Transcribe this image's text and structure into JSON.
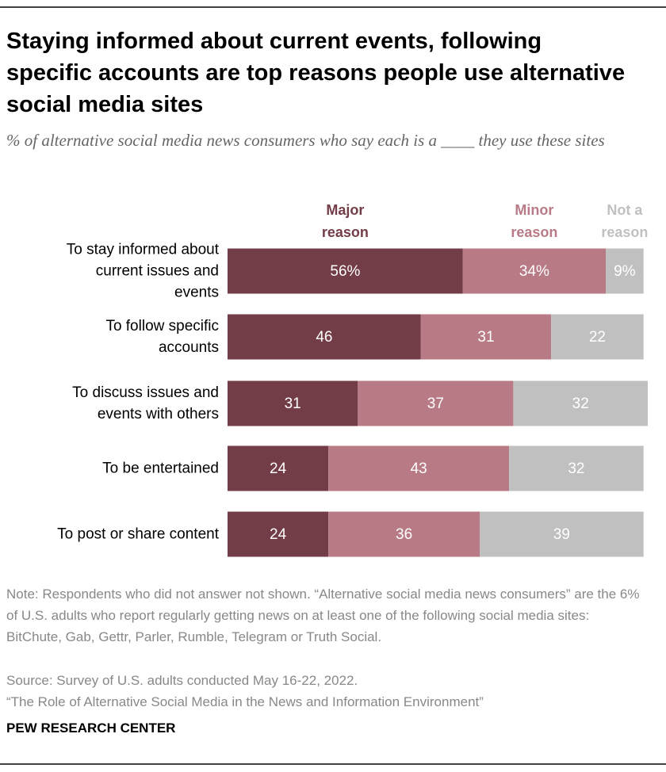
{
  "chart_data": {
    "type": "stacked-bar",
    "title": "Staying informed about current events, following specific accounts are top reasons people use alternative social media sites",
    "subtitle": "% of alternative social media news consumers who say each is a ____ they use these sites",
    "categories": [
      "To stay informed about\ncurrent issues and\nevents",
      "To follow specific\naccounts",
      "To discuss issues and\nevents with others",
      "To be entertained",
      "To post or share content"
    ],
    "series": [
      {
        "name": "Major\nreason",
        "color": "#733d47",
        "values": [
          56,
          46,
          31,
          24,
          24
        ],
        "value_labels": [
          "56%",
          "46",
          "31",
          "24",
          "24"
        ]
      },
      {
        "name": "Minor\nreason",
        "color": "#b87b86",
        "values": [
          34,
          31,
          37,
          43,
          36
        ],
        "value_labels": [
          "34%",
          "31",
          "37",
          "43",
          "36"
        ]
      },
      {
        "name": "Not a\nreason",
        "color": "#c0c0c0",
        "values": [
          9,
          22,
          32,
          32,
          39
        ],
        "value_labels": [
          "9%",
          "22",
          "32",
          "32",
          "39"
        ]
      }
    ],
    "xlim": [
      0,
      100
    ],
    "note": "Note: Respondents who did not answer not shown. “Alternative social media news consumers” are the 6% of U.S. adults who report regularly getting news on at least one of the following social media sites: BitChute, Gab, Gettr, Parler, Rumble, Telegram or Truth Social.",
    "source": "Source: Survey of U.S. adults conducted May 16-22, 2022.",
    "report": "“The Role of Alternative Social Media in the News and Information Environment”",
    "credit": "PEW RESEARCH CENTER"
  }
}
